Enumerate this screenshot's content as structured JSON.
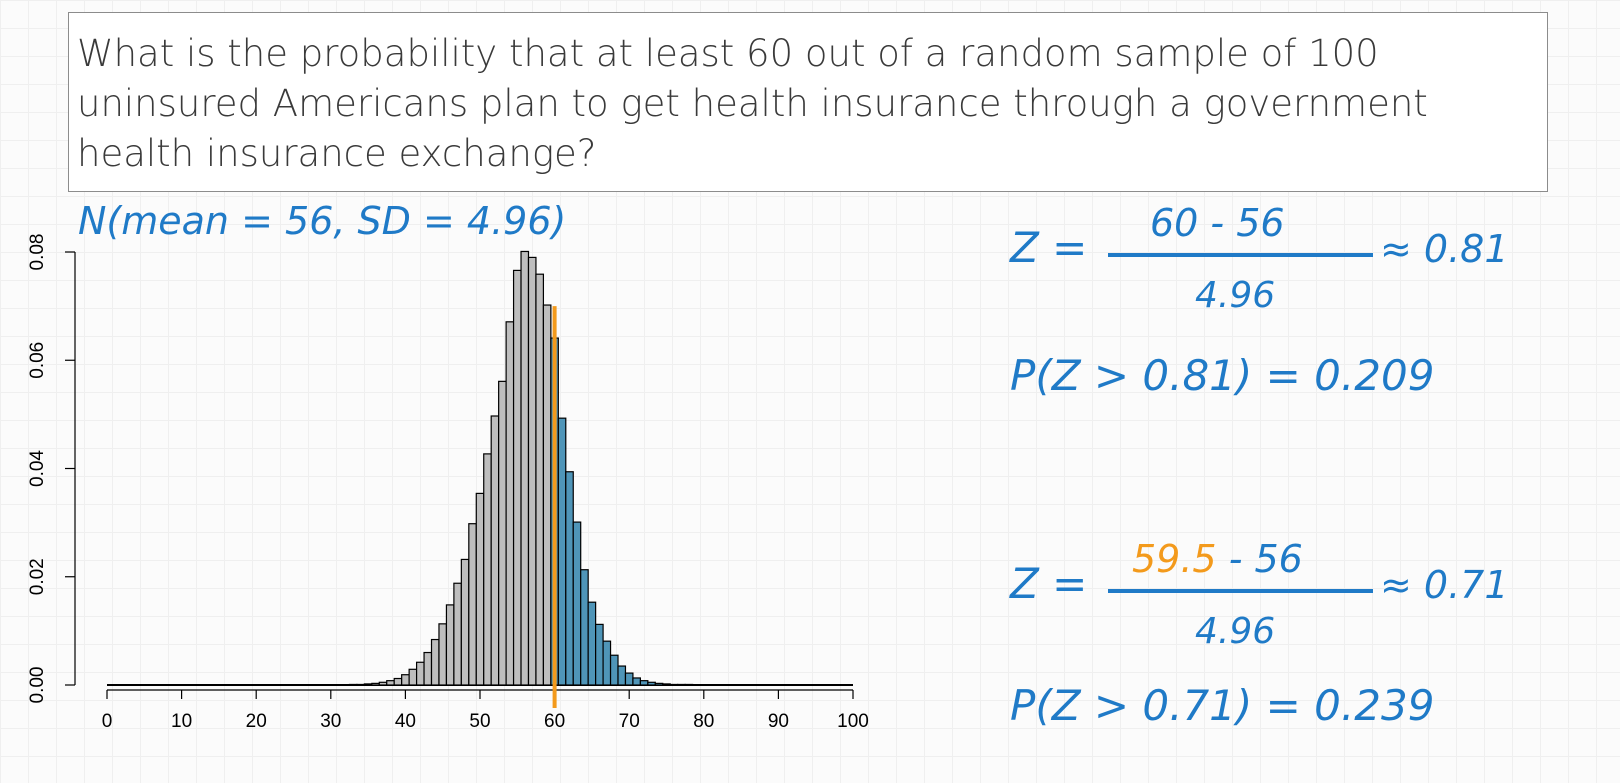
{
  "question": {
    "text": "What is the probability that at least 60 out of a random sample of 100 uninsured Americans plan to get health insurance through a government health insurance exchange?"
  },
  "annotations": {
    "distribution_label": "N(mean = 56, SD = 4.96)",
    "calc1": {
      "z_prefix": "Z =",
      "numerator": "60 - 56",
      "denominator": "4.96",
      "approx": "≈ 0.81",
      "prob": "P(Z > 0.81) = 0.209"
    },
    "calc2": {
      "z_prefix": "Z =",
      "numerator_highlight": "59.5",
      "numerator_rest": " - 56",
      "denominator": "4.96",
      "approx": "≈ 0.71",
      "prob": "P(Z > 0.71) = 0.239"
    }
  },
  "colors": {
    "bar_default": "#bebebe",
    "bar_highlight": "#4f95b8",
    "cutoff_line": "#f39a1c",
    "handwriting_blue": "#1f7ac7",
    "handwriting_orange": "#f39a1c"
  },
  "chart_data": {
    "type": "bar",
    "title": "",
    "xlabel": "",
    "ylabel": "",
    "xlim": [
      0,
      100
    ],
    "ylim": [
      0,
      0.08
    ],
    "x_ticks": [
      0,
      10,
      20,
      30,
      40,
      50,
      60,
      70,
      80,
      90,
      100
    ],
    "y_ticks": [
      "0.00",
      "0.02",
      "0.04",
      "0.06",
      "0.08"
    ],
    "bar_width": 1,
    "shade_from": 60,
    "cutoff": 60,
    "x": [
      33,
      34,
      35,
      36,
      37,
      38,
      39,
      40,
      41,
      42,
      43,
      44,
      45,
      46,
      47,
      48,
      49,
      50,
      51,
      52,
      53,
      54,
      55,
      56,
      57,
      58,
      59,
      60,
      61,
      62,
      63,
      64,
      65,
      66,
      67,
      68,
      69,
      70,
      71,
      72,
      73,
      74,
      75,
      76,
      77,
      78
    ],
    "values": [
      0.0001,
      0.0001,
      0.0002,
      0.0003,
      0.0005,
      0.0008,
      0.0012,
      0.0019,
      0.0029,
      0.0042,
      0.006,
      0.0084,
      0.0113,
      0.0148,
      0.0188,
      0.0232,
      0.0298,
      0.0354,
      0.0427,
      0.0497,
      0.0561,
      0.0671,
      0.0766,
      0.0801,
      0.079,
      0.0759,
      0.0702,
      0.0641,
      0.0493,
      0.0394,
      0.0301,
      0.0213,
      0.0153,
      0.0112,
      0.0081,
      0.0055,
      0.0035,
      0.0022,
      0.0013,
      0.0008,
      0.0005,
      0.0003,
      0.0002,
      0.0001,
      0.0001,
      0.0001
    ]
  }
}
